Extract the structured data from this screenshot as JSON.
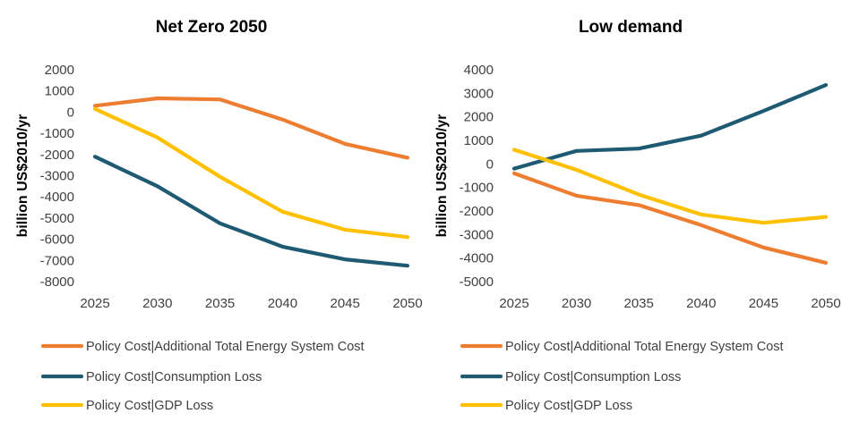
{
  "chart_data": [
    {
      "type": "line",
      "title": "Net Zero 2050",
      "ylabel": "billion US$2010/yr",
      "x": [
        2025,
        2030,
        2035,
        2040,
        2045,
        2050
      ],
      "x_tick_labels": [
        "2025",
        "2030",
        "2035",
        "2040",
        "2045",
        "2050"
      ],
      "ylim": [
        -8000,
        2000
      ],
      "y_ticks": [
        2000,
        1000,
        0,
        -1000,
        -2000,
        -3000,
        -4000,
        -5000,
        -6000,
        -7000,
        -8000
      ],
      "y_tick_labels": [
        "2000",
        "1000",
        "0",
        "-1000",
        "-2000",
        "-3000",
        "-4000",
        "-5000",
        "-6000",
        "-7000",
        "-8000"
      ],
      "grid": false,
      "legend": "bottom",
      "series": [
        {
          "name": "Policy Cost|Additional Total Energy System Cost",
          "color": "#ED7D31",
          "values": [
            300,
            650,
            600,
            -350,
            -1500,
            -2150
          ]
        },
        {
          "name": "Policy Cost|Consumption Loss",
          "color": "#1F5A73",
          "values": [
            -2100,
            -3500,
            -5250,
            -6350,
            -6950,
            -7250
          ]
        },
        {
          "name": "Policy Cost|GDP Loss",
          "color": "#FFC000",
          "values": [
            150,
            -1200,
            -3050,
            -4700,
            -5550,
            -5900
          ]
        }
      ]
    },
    {
      "type": "line",
      "title": "Low demand",
      "ylabel": "billion US$2010/yr",
      "x": [
        2025,
        2030,
        2035,
        2040,
        2045,
        2050
      ],
      "x_tick_labels": [
        "2025",
        "2030",
        "2035",
        "2040",
        "2045",
        "2050"
      ],
      "ylim": [
        -5000,
        4000
      ],
      "y_ticks": [
        4000,
        3000,
        2000,
        1000,
        0,
        -1000,
        -2000,
        -3000,
        -4000,
        -5000
      ],
      "y_tick_labels": [
        "4000",
        "3000",
        "2000",
        "1000",
        "0",
        "-1000",
        "-2000",
        "-3000",
        "-4000",
        "-5000"
      ],
      "grid": false,
      "legend": "bottom",
      "series": [
        {
          "name": "Policy Cost|Additional Total Energy System Cost",
          "color": "#ED7D31",
          "values": [
            -400,
            -1350,
            -1750,
            -2600,
            -3550,
            -4200
          ]
        },
        {
          "name": "Policy Cost|Consumption Loss",
          "color": "#1F5A73",
          "values": [
            -200,
            550,
            650,
            1200,
            2250,
            3350
          ]
        },
        {
          "name": "Policy Cost|GDP Loss",
          "color": "#FFC000",
          "values": [
            600,
            -250,
            -1300,
            -2150,
            -2500,
            -2250
          ]
        }
      ]
    }
  ]
}
